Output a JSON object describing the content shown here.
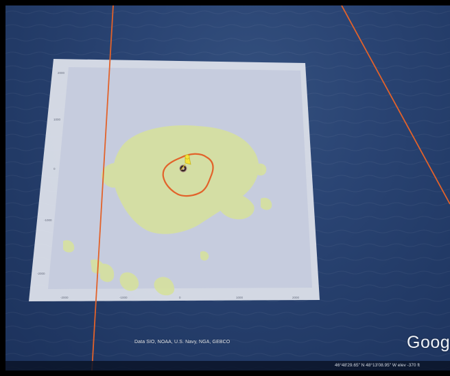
{
  "map": {
    "attribution": "Data SIO, NOAA, U.S. Navy, NGA, GEBCO",
    "brand": "Goog",
    "status": "46°48'29.65\" N   48°13'08.95\" W   elev  -370 ft",
    "colors": {
      "ocean": "#223a66",
      "panel": "#c9cfe0",
      "track": "#e2622a",
      "overlay_fill": "#d8e3a0",
      "placemark": "#f5e23a"
    },
    "overlay": {
      "x_ticks": [
        "-2000",
        "-1000",
        "0",
        "1000",
        "2000"
      ],
      "y_ticks": [
        "2000",
        "1000",
        "0",
        "-1000",
        "-2000"
      ]
    },
    "placemark_icon": "yellow-pushpin-icon"
  }
}
